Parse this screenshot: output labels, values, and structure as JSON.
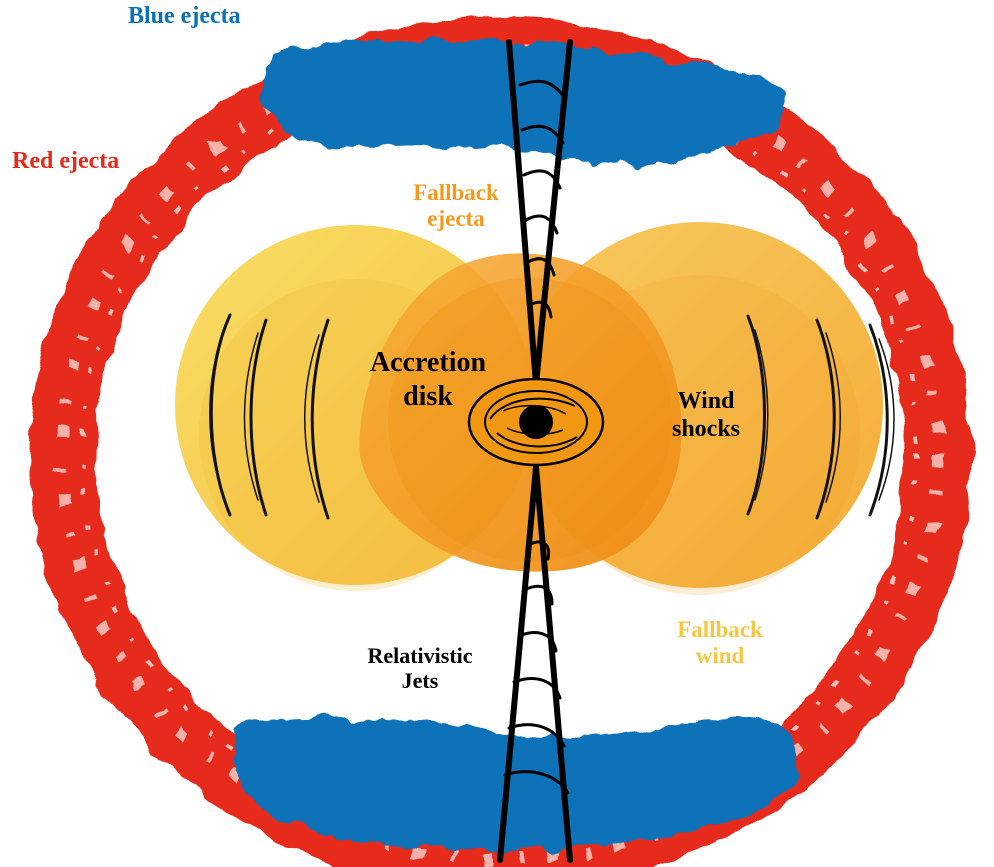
{
  "labels": {
    "blue_ejecta": "Blue ejecta",
    "red_ejecta": "Red ejecta",
    "fallback_ejecta": [
      "Fallback",
      "ejecta"
    ],
    "accretion_disk": [
      "Accretion",
      "disk"
    ],
    "wind_shocks": [
      "Wind",
      "shocks"
    ],
    "fallback_wind": [
      "Fallback",
      "wind"
    ],
    "relativistic_jets": [
      "Relativistic",
      "Jets"
    ]
  },
  "colors": {
    "blue_ejecta": "#0a72b8",
    "red_ejecta": "#e62a1c",
    "red_ejecta_light": "#f6b1ab",
    "fallback_ejecta": "#f39a1d",
    "fallback_wind": "#f8c640",
    "text_dark": "#000000"
  }
}
